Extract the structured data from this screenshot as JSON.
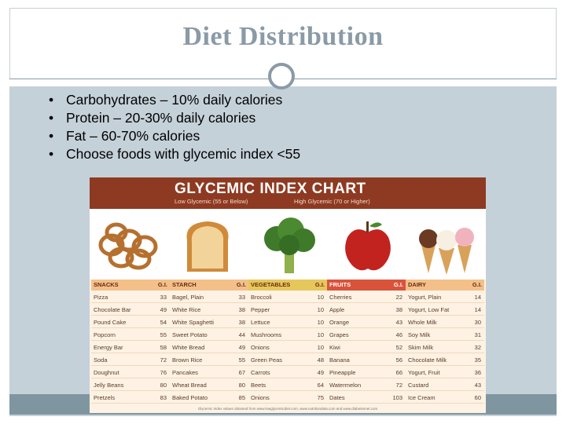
{
  "slide": {
    "title": "Diet Distribution",
    "bullets": [
      "Carbohydrates – 10% daily calories",
      "Protein – 20-30%  daily calories",
      "Fat – 60-70% calories",
      "Choose foods with glycemic index <55"
    ],
    "bullet_glyph": "•"
  },
  "gi_chart": {
    "title": "GLYCEMIC INDEX CHART",
    "low_label": "Low Glycemic (55 or Below)",
    "high_label": "High Glycemic (70 or Higher)",
    "gi_header": "G.I.",
    "footer": "Glycemic Index values obtained from www.lowglycemicdiet.com, www.nutritiondata.com and www.diabetesnet.com",
    "colors": {
      "header": "#8e3a22",
      "fruits_header": "#d9533b",
      "row_bg": "#fdf2e3"
    },
    "categories": [
      {
        "name": "SNACKS",
        "items": [
          [
            "Pizza",
            "33"
          ],
          [
            "Chocolate Bar",
            "49"
          ],
          [
            "Pound Cake",
            "54"
          ],
          [
            "Popcorn",
            "55"
          ],
          [
            "Energy Bar",
            "58"
          ],
          [
            "Soda",
            "72"
          ],
          [
            "Doughnut",
            "76"
          ],
          [
            "Jelly Beans",
            "80"
          ],
          [
            "Pretzels",
            "83"
          ]
        ]
      },
      {
        "name": "STARCH",
        "items": [
          [
            "Bagel, Plain",
            "33"
          ],
          [
            "White Rice",
            "38"
          ],
          [
            "White Spaghetti",
            "38"
          ],
          [
            "Sweet Potato",
            "44"
          ],
          [
            "White Bread",
            "49"
          ],
          [
            "Brown Rice",
            "55"
          ],
          [
            "Pancakes",
            "67"
          ],
          [
            "Wheat Bread",
            "80"
          ],
          [
            "Baked Potato",
            "85"
          ]
        ]
      },
      {
        "name": "VEGETABLES",
        "items": [
          [
            "Broccoli",
            "10"
          ],
          [
            "Pepper",
            "10"
          ],
          [
            "Lettuce",
            "10"
          ],
          [
            "Mushrooms",
            "10"
          ],
          [
            "Onions",
            "10"
          ],
          [
            "Green Peas",
            "48"
          ],
          [
            "Carrots",
            "49"
          ],
          [
            "Beets",
            "64"
          ],
          [
            "Onions",
            "75"
          ]
        ]
      },
      {
        "name": "FRUITS",
        "items": [
          [
            "Cherries",
            "22"
          ],
          [
            "Apple",
            "38"
          ],
          [
            "Orange",
            "43"
          ],
          [
            "Grapes",
            "46"
          ],
          [
            "Kiwi",
            "52"
          ],
          [
            "Banana",
            "56"
          ],
          [
            "Pineapple",
            "66"
          ],
          [
            "Watermelon",
            "72"
          ],
          [
            "Dates",
            "103"
          ]
        ]
      },
      {
        "name": "DAIRY",
        "items": [
          [
            "Yogurt, Plain",
            "14"
          ],
          [
            "Yogurt, Low Fat",
            "14"
          ],
          [
            "Whole Milk",
            "30"
          ],
          [
            "Soy Milk",
            "31"
          ],
          [
            "Skim Milk",
            "32"
          ],
          [
            "Chocolate Milk",
            "35"
          ],
          [
            "Yogurt, Fruit",
            "36"
          ],
          [
            "Custard",
            "43"
          ],
          [
            "Ice Cream",
            "60"
          ]
        ]
      }
    ],
    "photo_icons": [
      "pretzels-icon",
      "bread-toast-icon",
      "broccoli-icon",
      "apple-icon",
      "ice-cream-cones-icon"
    ]
  }
}
